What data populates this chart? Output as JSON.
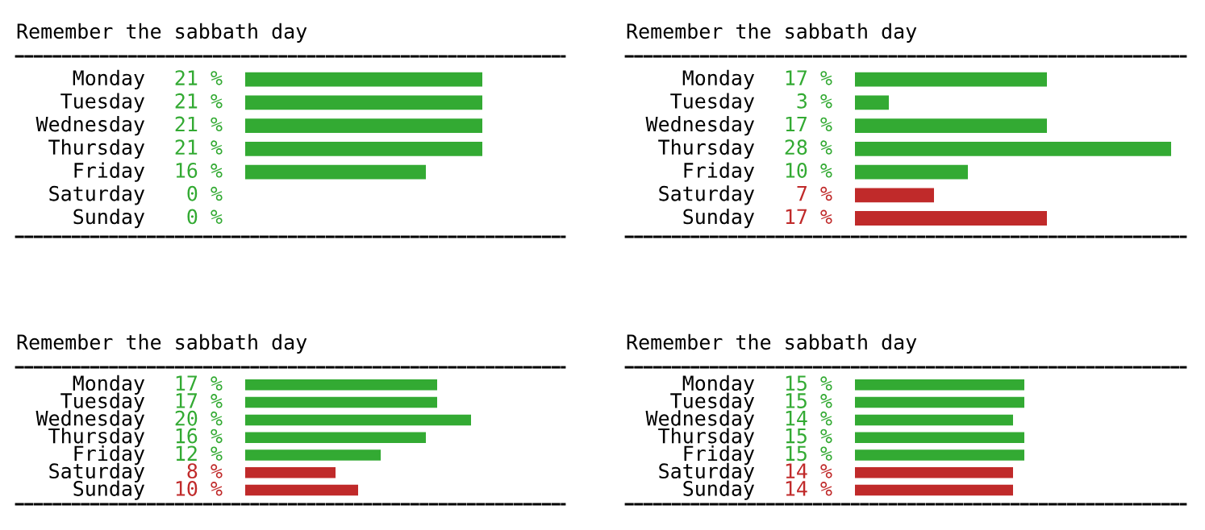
{
  "chart_data": [
    {
      "type": "bar",
      "orientation": "horizontal",
      "title": "Remember the sabbath day",
      "categories": [
        "Monday",
        "Tuesday",
        "Wednesday",
        "Thursday",
        "Friday",
        "Saturday",
        "Sunday"
      ],
      "values": [
        21,
        21,
        21,
        21,
        16,
        0,
        0
      ],
      "value_labels": [
        "21 %",
        "21 %",
        "21 %",
        "21 %",
        "16 %",
        "0 %",
        "0 %"
      ],
      "colors": [
        "#33aa33",
        "#33aa33",
        "#33aa33",
        "#33aa33",
        "#33aa33",
        "#33aa33",
        "#33aa33"
      ]
    },
    {
      "type": "bar",
      "orientation": "horizontal",
      "title": "Remember the sabbath day",
      "categories": [
        "Monday",
        "Tuesday",
        "Wednesday",
        "Thursday",
        "Friday",
        "Saturday",
        "Sunday"
      ],
      "values": [
        17,
        3,
        17,
        28,
        10,
        7,
        17
      ],
      "value_labels": [
        "17 %",
        "3 %",
        "17 %",
        "28 %",
        "10 %",
        "7 %",
        "17 %"
      ],
      "colors": [
        "#33aa33",
        "#33aa33",
        "#33aa33",
        "#33aa33",
        "#33aa33",
        "#c02a2a",
        "#c02a2a"
      ]
    },
    {
      "type": "bar",
      "orientation": "horizontal",
      "title": "Remember the sabbath day",
      "categories": [
        "Monday",
        "Tuesday",
        "Wednesday",
        "Thursday",
        "Friday",
        "Saturday",
        "Sunday"
      ],
      "values": [
        17,
        17,
        20,
        16,
        12,
        8,
        10
      ],
      "value_labels": [
        "17 %",
        "17 %",
        "20 %",
        "16 %",
        "12 %",
        "8 %",
        "10 %"
      ],
      "colors": [
        "#33aa33",
        "#33aa33",
        "#33aa33",
        "#33aa33",
        "#33aa33",
        "#c02a2a",
        "#c02a2a"
      ]
    },
    {
      "type": "bar",
      "orientation": "horizontal",
      "title": "Remember the sabbath day",
      "categories": [
        "Monday",
        "Tuesday",
        "Wednesday",
        "Thursday",
        "Friday",
        "Saturday",
        "Sunday"
      ],
      "values": [
        15,
        15,
        14,
        15,
        15,
        14,
        14
      ],
      "value_labels": [
        "15 %",
        "15 %",
        "14 %",
        "15 %",
        "15 %",
        "14 %",
        "14 %"
      ],
      "colors": [
        "#33aa33",
        "#33aa33",
        "#33aa33",
        "#33aa33",
        "#33aa33",
        "#c02a2a",
        "#c02a2a"
      ]
    }
  ]
}
